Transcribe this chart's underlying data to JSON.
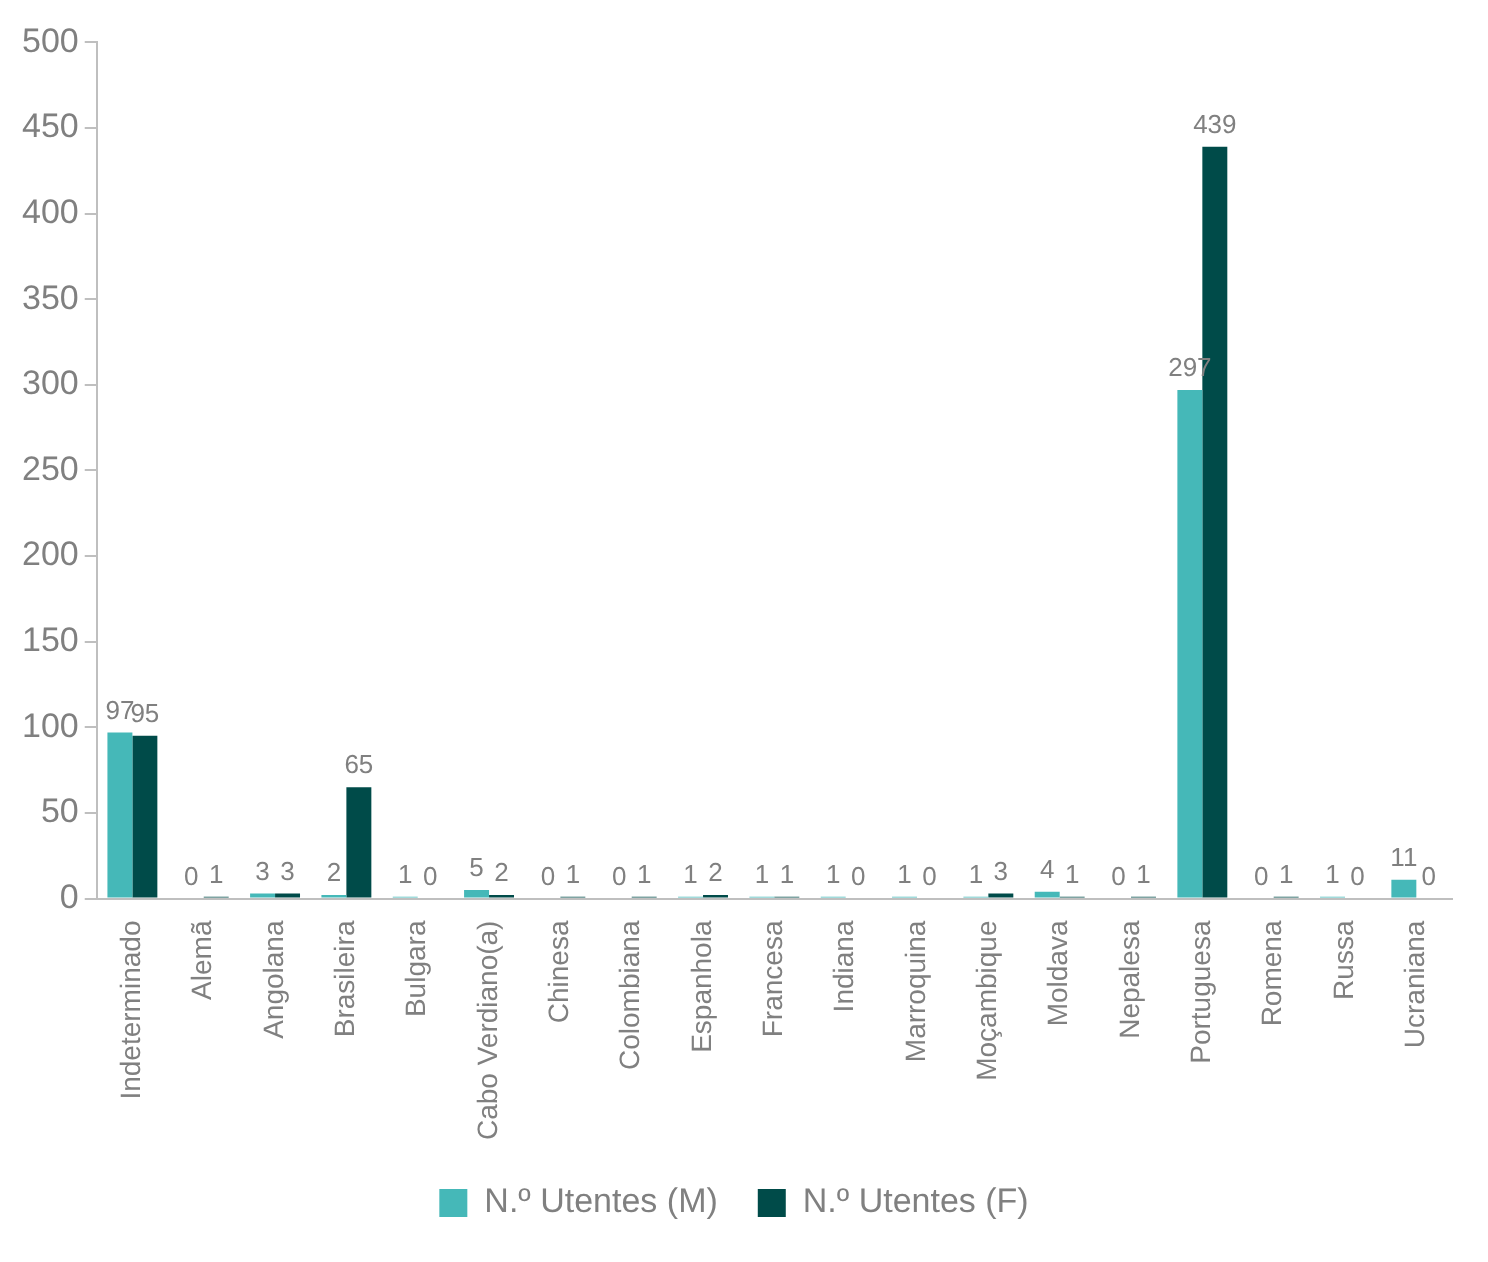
{
  "chart_data": {
    "type": "bar",
    "categories": [
      "Indeterminado",
      "Alemã",
      "Angolana",
      "Brasileira",
      "Bulgara",
      "Cabo Verdiano(a)",
      "Chinesa",
      "Colombiana",
      "Espanhola",
      "Francesa",
      "Indiana",
      "Marroquina",
      "Moçambique",
      "Moldava",
      "Nepalesa",
      "Portuguesa",
      "Romena",
      "Russa",
      "Ucraniana"
    ],
    "series": [
      {
        "name": "N.º Utentes (M)",
        "color": "#45b8b8",
        "values": [
          97,
          0,
          3,
          2,
          1,
          5,
          0,
          0,
          1,
          1,
          1,
          1,
          1,
          4,
          0,
          297,
          0,
          1,
          11
        ]
      },
      {
        "name": "N.º Utentes (F)",
        "color": "#004b49",
        "values": [
          95,
          1,
          3,
          65,
          0,
          2,
          1,
          1,
          2,
          1,
          0,
          0,
          3,
          1,
          1,
          439,
          1,
          0,
          0
        ]
      }
    ],
    "ylim": [
      0,
      500
    ],
    "yticks": [
      0,
      50,
      100,
      150,
      200,
      250,
      300,
      350,
      400,
      450,
      500
    ],
    "grid": false,
    "legend": "bottom",
    "data_labels": true
  }
}
